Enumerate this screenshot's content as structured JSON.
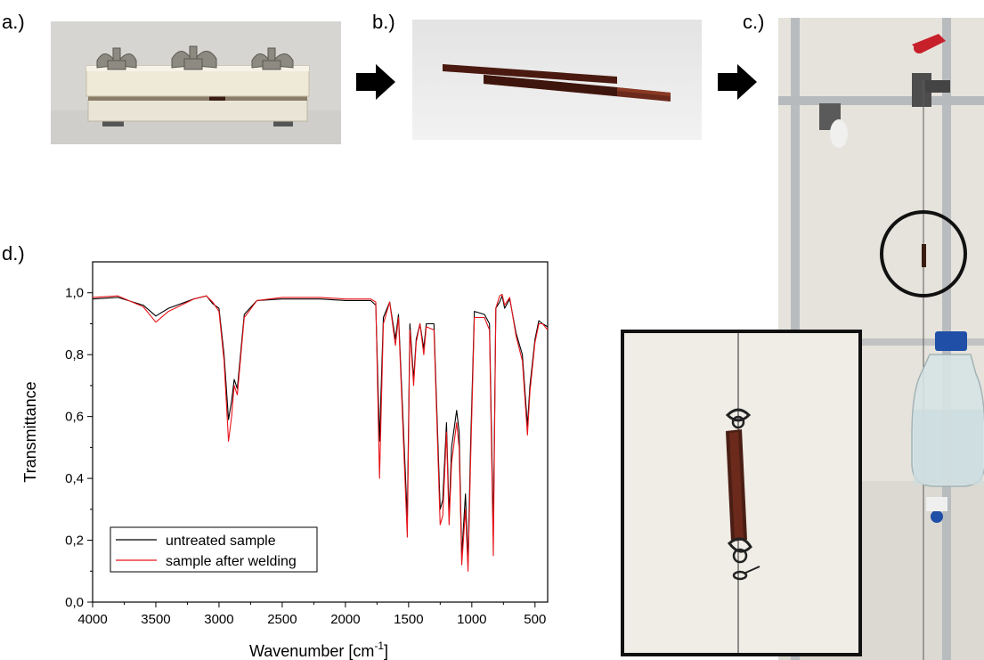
{
  "panels": {
    "a": "a.)",
    "b": "b.)",
    "c": "c.)",
    "d": "d.)"
  },
  "colors": {
    "series_untreated": "#000000",
    "series_welded": "#e8141b",
    "sample_brown": "#6b2a1c"
  },
  "chart_data": {
    "type": "line",
    "xlabel": "Wavenumber [cm",
    "xlabel_sup": "-1",
    "xlabel_end": "]",
    "ylabel": "Transmittance",
    "xlim": [
      4000,
      400
    ],
    "ylim": [
      0.0,
      1.1
    ],
    "xticks": [
      4000,
      3500,
      3000,
      2500,
      2000,
      1500,
      1000,
      500
    ],
    "yticks": [
      "0,0",
      "0,2",
      "0,4",
      "0,6",
      "0,8",
      "1,0"
    ],
    "ytick_values": [
      0.0,
      0.2,
      0.4,
      0.6,
      0.8,
      1.0
    ],
    "legend_position": "bottom-left",
    "grid": false,
    "series": [
      {
        "name": "untreated sample",
        "color": "#000000",
        "points": [
          [
            4000,
            0.98
          ],
          [
            3800,
            0.985
          ],
          [
            3600,
            0.96
          ],
          [
            3500,
            0.925
          ],
          [
            3400,
            0.95
          ],
          [
            3200,
            0.98
          ],
          [
            3100,
            0.99
          ],
          [
            3050,
            0.965
          ],
          [
            3000,
            0.95
          ],
          [
            2960,
            0.8
          ],
          [
            2925,
            0.59
          ],
          [
            2900,
            0.65
          ],
          [
            2880,
            0.72
          ],
          [
            2855,
            0.69
          ],
          [
            2800,
            0.93
          ],
          [
            2700,
            0.975
          ],
          [
            2500,
            0.98
          ],
          [
            2200,
            0.98
          ],
          [
            2000,
            0.975
          ],
          [
            1800,
            0.975
          ],
          [
            1760,
            0.96
          ],
          [
            1730,
            0.52
          ],
          [
            1700,
            0.92
          ],
          [
            1650,
            0.97
          ],
          [
            1605,
            0.85
          ],
          [
            1580,
            0.93
          ],
          [
            1510,
            0.27
          ],
          [
            1490,
            0.9
          ],
          [
            1460,
            0.72
          ],
          [
            1440,
            0.85
          ],
          [
            1410,
            0.9
          ],
          [
            1380,
            0.82
          ],
          [
            1360,
            0.9
          ],
          [
            1300,
            0.9
          ],
          [
            1250,
            0.3
          ],
          [
            1230,
            0.33
          ],
          [
            1200,
            0.58
          ],
          [
            1180,
            0.28
          ],
          [
            1160,
            0.5
          ],
          [
            1120,
            0.62
          ],
          [
            1100,
            0.55
          ],
          [
            1080,
            0.15
          ],
          [
            1050,
            0.35
          ],
          [
            1030,
            0.13
          ],
          [
            1010,
            0.5
          ],
          [
            980,
            0.94
          ],
          [
            900,
            0.93
          ],
          [
            860,
            0.9
          ],
          [
            830,
            0.23
          ],
          [
            810,
            0.95
          ],
          [
            780,
            0.97
          ],
          [
            760,
            0.99
          ],
          [
            740,
            0.95
          ],
          [
            700,
            0.98
          ],
          [
            650,
            0.87
          ],
          [
            600,
            0.8
          ],
          [
            560,
            0.57
          ],
          [
            540,
            0.7
          ],
          [
            500,
            0.85
          ],
          [
            470,
            0.91
          ],
          [
            440,
            0.9
          ],
          [
            400,
            0.89
          ]
        ]
      },
      {
        "name": "sample after welding",
        "color": "#e8141b",
        "points": [
          [
            4000,
            0.985
          ],
          [
            3800,
            0.99
          ],
          [
            3600,
            0.955
          ],
          [
            3500,
            0.905
          ],
          [
            3400,
            0.94
          ],
          [
            3200,
            0.98
          ],
          [
            3100,
            0.99
          ],
          [
            3050,
            0.97
          ],
          [
            3000,
            0.94
          ],
          [
            2960,
            0.78
          ],
          [
            2925,
            0.52
          ],
          [
            2900,
            0.6
          ],
          [
            2880,
            0.7
          ],
          [
            2855,
            0.67
          ],
          [
            2800,
            0.92
          ],
          [
            2700,
            0.975
          ],
          [
            2500,
            0.985
          ],
          [
            2200,
            0.985
          ],
          [
            2000,
            0.98
          ],
          [
            1800,
            0.98
          ],
          [
            1760,
            0.97
          ],
          [
            1730,
            0.4
          ],
          [
            1700,
            0.9
          ],
          [
            1650,
            0.97
          ],
          [
            1605,
            0.83
          ],
          [
            1580,
            0.92
          ],
          [
            1510,
            0.21
          ],
          [
            1490,
            0.88
          ],
          [
            1460,
            0.7
          ],
          [
            1440,
            0.84
          ],
          [
            1410,
            0.9
          ],
          [
            1380,
            0.8
          ],
          [
            1360,
            0.89
          ],
          [
            1300,
            0.88
          ],
          [
            1250,
            0.25
          ],
          [
            1230,
            0.28
          ],
          [
            1200,
            0.55
          ],
          [
            1180,
            0.25
          ],
          [
            1160,
            0.45
          ],
          [
            1120,
            0.58
          ],
          [
            1100,
            0.5
          ],
          [
            1080,
            0.12
          ],
          [
            1050,
            0.3
          ],
          [
            1030,
            0.1
          ],
          [
            1010,
            0.45
          ],
          [
            980,
            0.92
          ],
          [
            900,
            0.92
          ],
          [
            860,
            0.88
          ],
          [
            830,
            0.15
          ],
          [
            810,
            0.95
          ],
          [
            780,
            0.99
          ],
          [
            760,
            0.995
          ],
          [
            740,
            0.96
          ],
          [
            700,
            0.985
          ],
          [
            650,
            0.86
          ],
          [
            600,
            0.78
          ],
          [
            560,
            0.54
          ],
          [
            540,
            0.68
          ],
          [
            500,
            0.84
          ],
          [
            470,
            0.9
          ],
          [
            440,
            0.9
          ],
          [
            400,
            0.88
          ]
        ]
      }
    ]
  }
}
